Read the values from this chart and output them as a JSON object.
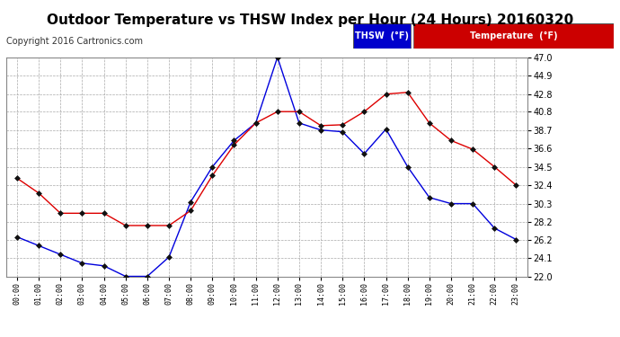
{
  "title": "Outdoor Temperature vs THSW Index per Hour (24 Hours) 20160320",
  "copyright": "Copyright 2016 Cartronics.com",
  "hours": [
    "00:00",
    "01:00",
    "02:00",
    "03:00",
    "04:00",
    "05:00",
    "06:00",
    "07:00",
    "08:00",
    "09:00",
    "10:00",
    "11:00",
    "12:00",
    "13:00",
    "14:00",
    "15:00",
    "16:00",
    "17:00",
    "18:00",
    "19:00",
    "20:00",
    "21:00",
    "22:00",
    "23:00"
  ],
  "thsw": [
    26.5,
    25.5,
    24.5,
    23.5,
    23.2,
    22.0,
    22.0,
    24.2,
    30.5,
    34.5,
    37.5,
    39.5,
    47.0,
    39.5,
    38.7,
    38.5,
    36.0,
    38.8,
    34.5,
    31.0,
    30.3,
    30.3,
    27.5,
    26.2
  ],
  "temperature": [
    33.2,
    31.5,
    29.2,
    29.2,
    29.2,
    27.8,
    27.8,
    27.8,
    29.5,
    33.5,
    37.0,
    39.5,
    40.8,
    40.8,
    39.2,
    39.3,
    40.8,
    42.8,
    43.0,
    39.5,
    37.5,
    36.5,
    34.5,
    32.4
  ],
  "ylim_min": 22.0,
  "ylim_max": 47.0,
  "yticks": [
    22.0,
    24.1,
    26.2,
    28.2,
    30.3,
    32.4,
    34.5,
    36.6,
    38.7,
    40.8,
    42.8,
    44.9,
    47.0
  ],
  "thsw_color": "#0000dd",
  "temp_color": "#dd0000",
  "bg_color": "#ffffff",
  "plot_bg_color": "#ffffff",
  "grid_color": "#aaaaaa",
  "legend_thsw_bg": "#0000cc",
  "legend_temp_bg": "#cc0000",
  "title_fontsize": 11,
  "marker": "D",
  "marker_color": "#111111",
  "marker_size": 3,
  "copyright_color": "#333333",
  "copyright_fontsize": 7
}
